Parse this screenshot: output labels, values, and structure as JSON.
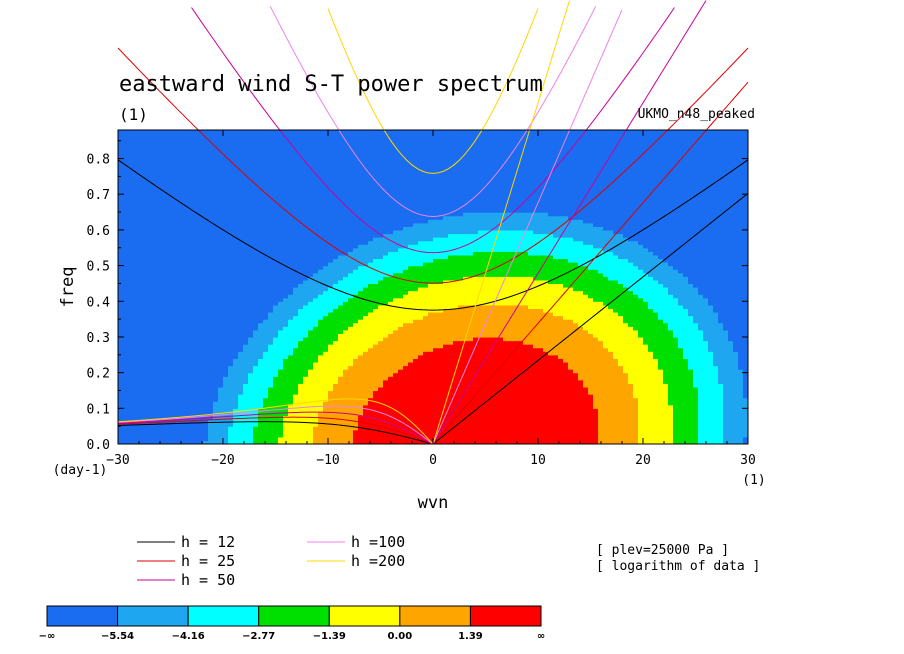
{
  "chart_data": {
    "type": "heatmap",
    "title": "eastward wind S-T power spectrum",
    "subtitle": "(1)",
    "model_label": "UKMO_n48_peaked",
    "xlabel": "wvn",
    "ylabel": "freq",
    "x_unit": "(1)",
    "y_unit": "(day-1)",
    "xlim": [
      -30,
      30
    ],
    "ylim": [
      0,
      0.88
    ],
    "xticks": [
      "−30",
      "−20",
      "−10",
      "0",
      "10",
      "20",
      "30"
    ],
    "yticks": [
      "0.0",
      "0.1",
      "0.2",
      "0.3",
      "0.4",
      "0.5",
      "0.6",
      "0.7",
      "0.8"
    ],
    "notes": [
      "[ plev=25000 Pa ]",
      "[ logarithm of data ]"
    ],
    "colorbar": {
      "labels": [
        "−∞",
        "−5.54",
        "−4.16",
        "−2.77",
        "−1.39",
        "0.00",
        "1.39",
        "∞"
      ],
      "colors": [
        "#1a6cf0",
        "#1ea6f0",
        "#00ffff",
        "#00e000",
        "#ffff00",
        "#ffa500",
        "#ff0000"
      ]
    },
    "contour_levels": [
      -5.54,
      -4.16,
      -2.77,
      -1.39,
      0.0,
      1.39
    ],
    "field_description_peak": {
      "wvn": 4,
      "freq": 0.0
    },
    "legend": [
      {
        "name": "h = 12",
        "color": "#000000"
      },
      {
        "name": "h = 25",
        "color": "#e00000"
      },
      {
        "name": "h = 50",
        "color": "#cc0099"
      },
      {
        "name": "h =100",
        "color": "#ee82ee"
      },
      {
        "name": "h =200",
        "color": "#ffd700"
      }
    ],
    "dispersion_curves": {
      "equivalent_depths_m": [
        12,
        25,
        50,
        100,
        200
      ],
      "kelvin_n": 1,
      "rossby_n": 1
    }
  }
}
